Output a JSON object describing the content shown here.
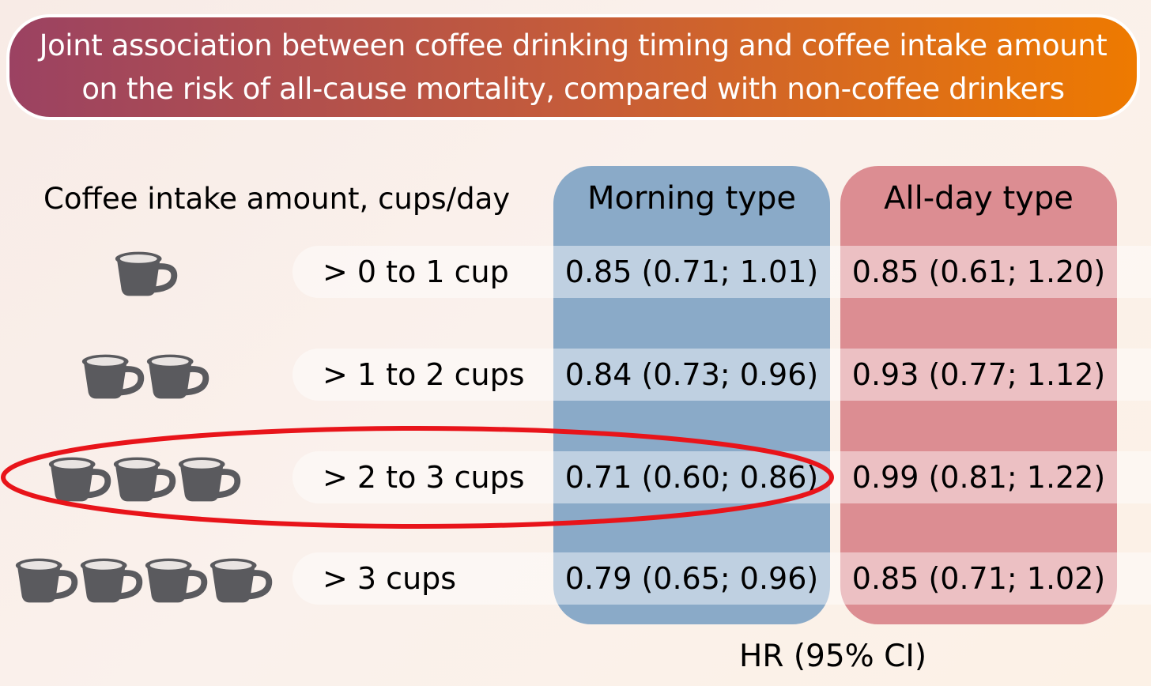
{
  "title": {
    "line1": "Joint association between coffee drinking timing and coffee intake amount",
    "line2": "on the risk of all-cause mortality, compared with non-coffee drinkers"
  },
  "row_header": "Coffee intake amount, cups/day",
  "footer": "HR (95% CI)",
  "colors": {
    "morning": "#8aaac8",
    "allday": "#dc8d92",
    "cup": "#5a5a5e",
    "highlight": "#e8141a"
  },
  "highlighted_row": 2,
  "chart_data": {
    "type": "table",
    "columns": [
      "Morning type",
      "All-day type"
    ],
    "rows": [
      {
        "label": "> 0 to 1 cup",
        "cups": 1,
        "morning": "0.85 (0.71; 1.01)",
        "allday": "0.85 (0.61; 1.20)"
      },
      {
        "label": "> 1 to 2 cups",
        "cups": 2,
        "morning": "0.84 (0.73; 0.96)",
        "allday": "0.93 (0.77; 1.12)"
      },
      {
        "label": "> 2 to 3 cups",
        "cups": 3,
        "morning": "0.71 (0.60; 0.86)",
        "allday": "0.99 (0.81; 1.22)"
      },
      {
        "label": "> 3 cups",
        "cups": 4,
        "morning": "0.79 (0.65; 0.96)",
        "allday": "0.85 (0.71; 1.02)"
      }
    ]
  }
}
